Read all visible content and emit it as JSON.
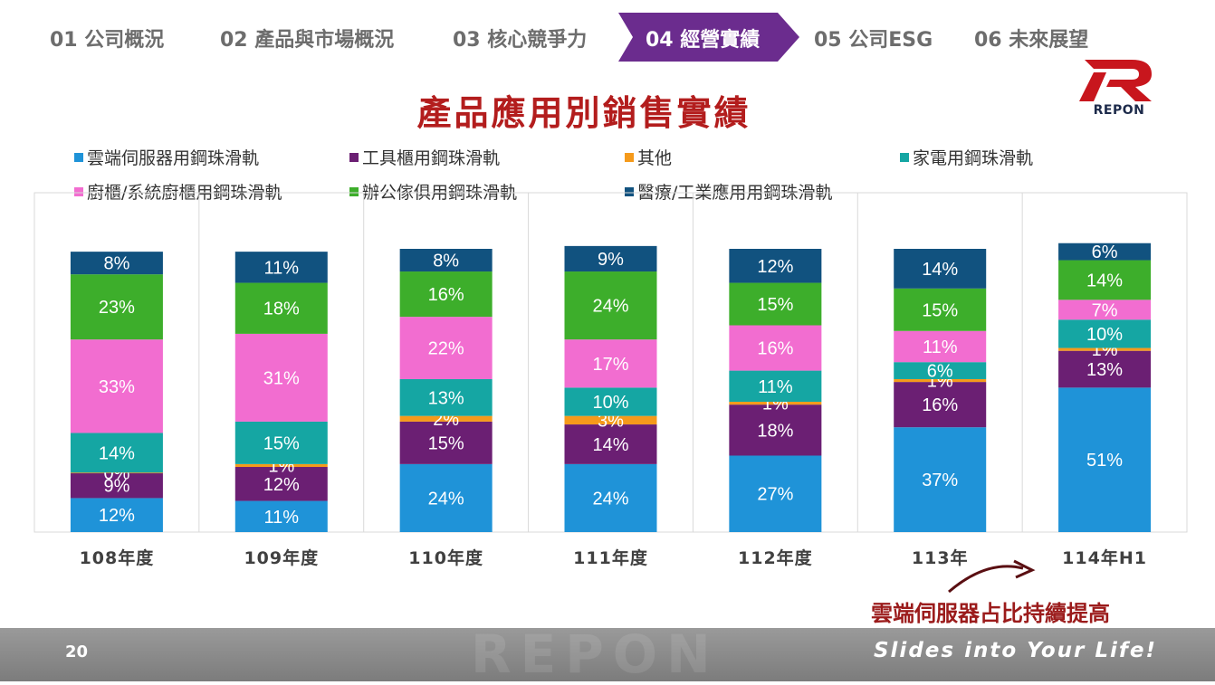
{
  "nav": {
    "items": [
      "01 公司概況",
      "02 產品與市場概況",
      "03 核心競爭力",
      "04 經營實績",
      "05 公司ESG",
      "06 未來展望"
    ],
    "active_index": 3
  },
  "logo": {
    "text": "REPON"
  },
  "title": "產品應用別銷售實績",
  "annotation": "雲端伺服器占比持續提高",
  "footer": {
    "page_number": "20",
    "slogan": "Slides into Your Life!",
    "watermark": "REPON"
  },
  "colors": {
    "active_tab": "#6b2c8e",
    "title": "#b31d1d",
    "annotation": "#9b1b1b",
    "cloud_server": "#1f93d8",
    "tool_cabinet": "#6b1f73",
    "other": "#f59a1b",
    "appliance": "#15a6a3",
    "kitchen": "#f26dd0",
    "office": "#3dae2b",
    "medical": "#11527f"
  },
  "chart_data": {
    "type": "bar",
    "stacked": true,
    "title": "產品應用別銷售實績",
    "categories": [
      "108年度",
      "109年度",
      "110年度",
      "111年度",
      "112年度",
      "113年",
      "114年H1"
    ],
    "series": [
      {
        "name": "雲端伺服器用鋼珠滑軌",
        "color": "#1f93d8",
        "values": [
          12,
          11,
          24,
          24,
          27,
          37,
          51
        ]
      },
      {
        "name": "工具櫃用鋼珠滑軌",
        "color": "#6b1f73",
        "values": [
          9,
          12,
          15,
          14,
          18,
          16,
          13
        ]
      },
      {
        "name": "其他",
        "color": "#f59a1b",
        "values": [
          0,
          1,
          2,
          3,
          1,
          1,
          1
        ]
      },
      {
        "name": "家電用鋼珠滑軌",
        "color": "#15a6a3",
        "values": [
          14,
          15,
          13,
          10,
          11,
          6,
          10
        ]
      },
      {
        "name": "廚櫃/系統廚櫃用鋼珠滑軌",
        "color": "#f26dd0",
        "values": [
          33,
          31,
          22,
          17,
          16,
          11,
          7
        ]
      },
      {
        "name": "辦公傢俱用鋼珠滑軌",
        "color": "#3dae2b",
        "values": [
          23,
          18,
          16,
          24,
          15,
          15,
          14
        ]
      },
      {
        "name": "醫療/工業應用用鋼珠滑軌",
        "color": "#11527f",
        "values": [
          8,
          11,
          8,
          9,
          12,
          14,
          6
        ]
      }
    ],
    "value_suffix": "%",
    "ylim": [
      0,
      100
    ],
    "legend_position": "top",
    "grid": false
  }
}
